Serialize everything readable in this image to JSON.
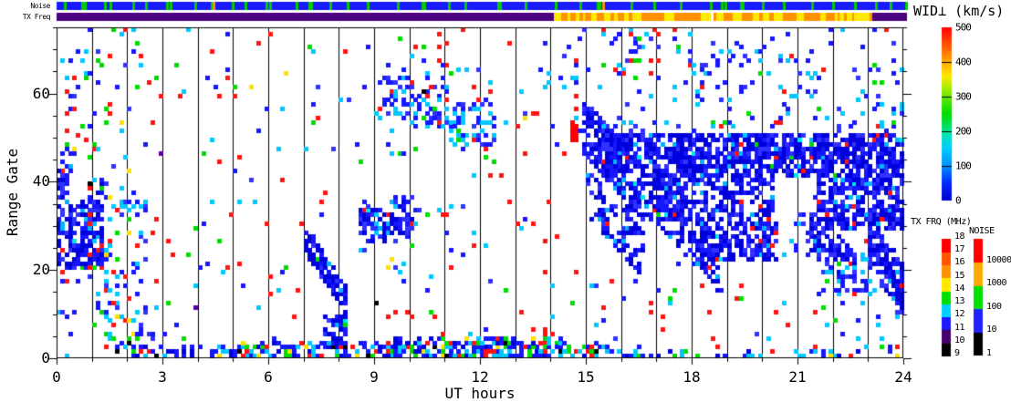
{
  "strips": {
    "noise": {
      "label": "Noise",
      "base_color": "#1a1aff",
      "tick_color": "#00cc00",
      "tick_positions_ut": [
        0.2,
        0.7,
        0.78,
        1.35,
        1.5,
        2.15,
        2.5,
        3.1,
        3.2,
        3.9,
        4.35,
        4.95,
        5.3,
        5.9,
        6.0,
        6.75,
        7.1,
        7.15,
        7.7,
        8.2,
        8.75,
        9.6,
        10.3,
        10.35,
        11.05,
        11.5,
        12.45,
        12.5,
        13.2,
        14.05,
        14.75,
        15.25,
        15.3,
        16.2,
        16.85,
        17.6,
        18.45,
        18.75,
        18.85,
        19.3,
        19.35,
        19.9,
        20.5,
        21.3,
        21.9,
        22.5,
        23.1,
        23.5,
        23.95
      ],
      "orange_tick_color": "#ff9100",
      "orange_tick_positions_ut": [
        4.4,
        15.4
      ]
    },
    "tx_freq": {
      "label": "TX Freq",
      "base_color": "#4b0082",
      "mixed_interval_ut": [
        14.03,
        22.95
      ],
      "mixed_colors": [
        "#ff9100",
        "#ffe800"
      ]
    }
  },
  "colorbars": {
    "wid": {
      "title": "WID⊥ (km/s)",
      "min": 0,
      "max": 500,
      "ticks": [
        0,
        100,
        200,
        300,
        400,
        500
      ],
      "gradient_bottom_to_top": [
        [
          "#0000d0",
          0.0
        ],
        [
          "#0028ff",
          0.1
        ],
        [
          "#0090ff",
          0.2
        ],
        [
          "#00ccff",
          0.3
        ],
        [
          "#00e6b4",
          0.38
        ],
        [
          "#00e050",
          0.44
        ],
        [
          "#00dc00",
          0.5
        ],
        [
          "#50e600",
          0.58
        ],
        [
          "#b4ee00",
          0.66
        ],
        [
          "#ffe800",
          0.72
        ],
        [
          "#ffaa00",
          0.8
        ],
        [
          "#ff6400",
          0.88
        ],
        [
          "#ff2800",
          0.95
        ],
        [
          "#ff0000",
          1.0
        ]
      ]
    },
    "tx_frq": {
      "title": "TX FRQ (MHz)",
      "min": 9,
      "max": 18,
      "ticks": [
        9,
        10,
        11,
        12,
        13,
        14,
        15,
        16,
        17,
        18
      ],
      "colors_bottom_to_top": [
        "#000000",
        "#46006e",
        "#1a1aff",
        "#00cfff",
        "#00e000",
        "#ffe800",
        "#ff9100",
        "#ff5500",
        "#ff0000"
      ]
    },
    "noise": {
      "title": "NOISE",
      "labels_bottom_to_top": [
        "1",
        "10",
        "100",
        "1000",
        "10000"
      ],
      "colors_bottom_to_top": [
        "#000000",
        "#2222ff",
        "#00e000",
        "#ffaa00",
        "#ff0000"
      ]
    }
  },
  "chart_data": {
    "type": "heatmap",
    "xlabel": "UT hours",
    "ylabel": "Range Gate",
    "x_range": [
      0,
      24
    ],
    "y_range": [
      0,
      75
    ],
    "x_major_ticks": [
      0,
      3,
      6,
      9,
      12,
      15,
      18,
      21,
      24
    ],
    "x_minor_step": 1,
    "y_major_ticks": [
      0,
      20,
      40,
      60
    ],
    "y_minor_step": 5,
    "grid": "vertical black line each UT hour",
    "legend_position": "right",
    "value_unit": "km/s (WID perpendicular, 0=blue to 500=red)",
    "time_bins_per_hour": 9,
    "seed": 1234,
    "palettes": {
      "blue_dense": [
        [
          "#0000dc",
          45
        ],
        [
          "#1616ff",
          30
        ],
        [
          "#3232ff",
          15
        ],
        [
          "#00b4ff",
          6
        ],
        [
          "#ff1414",
          2
        ],
        [
          "#00dc00",
          1
        ],
        [
          "#00e6e6",
          1
        ]
      ],
      "blue_cyan": [
        [
          "#1616ff",
          45
        ],
        [
          "#00c8ff",
          30
        ],
        [
          "#3232ff",
          15
        ],
        [
          "#ff1414",
          5
        ],
        [
          "#00dc00",
          5
        ]
      ],
      "mixed_sparse": [
        [
          "#ff1414",
          42
        ],
        [
          "#1616ff",
          18
        ],
        [
          "#00c8ff",
          16
        ],
        [
          "#00dc00",
          14
        ],
        [
          "#3232ff",
          5
        ],
        [
          "#ffe100",
          2
        ],
        [
          "#ff9100",
          1
        ],
        [
          "#000000",
          1
        ],
        [
          "#5a00a0",
          1
        ]
      ],
      "mixed_medium": [
        [
          "#1616ff",
          30
        ],
        [
          "#00c8ff",
          25
        ],
        [
          "#00dc00",
          15
        ],
        [
          "#ff1414",
          15
        ],
        [
          "#3232ff",
          10
        ],
        [
          "#ffe100",
          3
        ],
        [
          "#000000",
          2
        ]
      ],
      "red_dom": [
        [
          "#ff1414",
          70
        ],
        [
          "#1616ff",
          10
        ],
        [
          "#00c8ff",
          10
        ],
        [
          "#00dc00",
          8
        ],
        [
          "#ffe100",
          2
        ]
      ],
      "red_solid": [
        [
          "#ff0000",
          90
        ],
        [
          "#e60000",
          10
        ]
      ],
      "bottom_band": [
        [
          "#1616ff",
          35
        ],
        [
          "#00c8ff",
          25
        ],
        [
          "#0000dc",
          15
        ],
        [
          "#00dc00",
          8
        ],
        [
          "#ff1414",
          10
        ],
        [
          "#ffe100",
          3
        ],
        [
          "#000000",
          4
        ]
      ]
    },
    "features": [
      {
        "shape": "rect",
        "t": [
          0,
          24
        ],
        "g": [
          0,
          75
        ],
        "d": 0.007,
        "p": "mixed_sparse"
      },
      {
        "shape": "rect",
        "t": [
          2.6,
          12.3
        ],
        "g": [
          3,
          75
        ],
        "d": 0.018,
        "p": "mixed_sparse"
      },
      {
        "shape": "rect",
        "t": [
          12.3,
          14.8
        ],
        "g": [
          4,
          62
        ],
        "d": 0.035,
        "p": "red_dom"
      },
      {
        "shape": "rect",
        "t": [
          13.4,
          14.8
        ],
        "g": [
          55,
          72
        ],
        "d": 0.05,
        "p": "blue_cyan"
      },
      {
        "shape": "rect",
        "t": [
          0,
          2.6
        ],
        "g": [
          3,
          75
        ],
        "d": 0.07,
        "p": "mixed_medium"
      },
      {
        "shape": "rect",
        "t": [
          0,
          0.38
        ],
        "g": [
          17,
          43
        ],
        "d": 0.6,
        "p": "blue_dense"
      },
      {
        "shape": "rect",
        "t": [
          0.05,
          0.45
        ],
        "g": [
          38,
          48
        ],
        "d": 0.35,
        "p": "blue_dense"
      },
      {
        "shape": "rect",
        "t": [
          0.3,
          1.3
        ],
        "g": [
          20,
          36
        ],
        "d": 0.66,
        "p": "blue_dense"
      },
      {
        "shape": "diag",
        "t": [
          0.85,
          1.45
        ],
        "gc": [
          28,
          43
        ],
        "hw": 4,
        "d": 0.5,
        "p": "blue_dense"
      },
      {
        "shape": "rect",
        "t": [
          1.3,
          2.6
        ],
        "g": [
          2,
          20
        ],
        "d": 0.2,
        "p": "mixed_medium"
      },
      {
        "shape": "rect",
        "t": [
          0.9,
          2.6
        ],
        "g": [
          20,
          40
        ],
        "d": 0.12,
        "p": "mixed_medium"
      },
      {
        "shape": "rect",
        "t": [
          1.6,
          16.6
        ],
        "g": [
          0,
          2.3
        ],
        "d": 0.45,
        "p": "bottom_band"
      },
      {
        "shape": "rect",
        "t": [
          9.4,
          14.6
        ],
        "g": [
          0,
          4.2
        ],
        "d": 0.5,
        "p": "bottom_band"
      },
      {
        "shape": "rect",
        "t": [
          5.2,
          9.4
        ],
        "g": [
          0,
          3.2
        ],
        "d": 0.3,
        "p": "bottom_band"
      },
      {
        "shape": "rect",
        "t": [
          16.6,
          24
        ],
        "g": [
          0,
          1.6
        ],
        "d": 0.2,
        "p": "bottom_band"
      },
      {
        "shape": "diag",
        "t": [
          7.0,
          8.2
        ],
        "gc": [
          27,
          12
        ],
        "hw": 2.8,
        "d": 0.85,
        "p": "blue_dense"
      },
      {
        "shape": "rect",
        "t": [
          7.55,
          8.25
        ],
        "g": [
          2,
          9.5
        ],
        "d": 0.7,
        "p": "blue_dense"
      },
      {
        "shape": "rect",
        "t": [
          8.55,
          9.3
        ],
        "g": [
          26,
          34
        ],
        "d": 0.6,
        "p": "blue_dense"
      },
      {
        "shape": "rect",
        "t": [
          9.3,
          10.15
        ],
        "g": [
          28,
          36
        ],
        "d": 0.55,
        "p": "blue_dense"
      },
      {
        "shape": "rect",
        "t": [
          8.4,
          10.3
        ],
        "g": [
          24,
          38
        ],
        "d": 0.1,
        "p": "blue_cyan"
      },
      {
        "shape": "rect",
        "t": [
          9.2,
          10.05
        ],
        "g": [
          55,
          64
        ],
        "d": 0.38,
        "p": "blue_cyan"
      },
      {
        "shape": "rect",
        "t": [
          10.0,
          11.15
        ],
        "g": [
          52,
          62
        ],
        "d": 0.42,
        "p": "blue_cyan"
      },
      {
        "shape": "rect",
        "t": [
          11.1,
          12.45
        ],
        "g": [
          48,
          58
        ],
        "d": 0.38,
        "p": "blue_cyan"
      },
      {
        "shape": "rect",
        "t": [
          9.0,
          12.6
        ],
        "g": [
          46,
          67
        ],
        "d": 0.06,
        "p": "mixed_medium"
      },
      {
        "shape": "rect",
        "t": [
          14.55,
          14.75
        ],
        "g": [
          48,
          55
        ],
        "d": 0.8,
        "p": "red_solid"
      },
      {
        "shape": "diag",
        "t": [
          14.85,
          16.1
        ],
        "gc": [
          52,
          42
        ],
        "hw": 6,
        "d": 0.8,
        "p": "blue_dense"
      },
      {
        "shape": "diag",
        "t": [
          14.95,
          16.7
        ],
        "gc": [
          38,
          22
        ],
        "hw": 5,
        "d": 0.5,
        "p": "blue_dense"
      },
      {
        "shape": "rect",
        "t": [
          15.5,
          24
        ],
        "g": [
          41,
          51
        ],
        "d": 0.72,
        "p": "blue_dense"
      },
      {
        "shape": "rect",
        "t": [
          16.1,
          20.3
        ],
        "g": [
          31,
          41
        ],
        "d": 0.58,
        "p": "blue_dense"
      },
      {
        "shape": "diag",
        "t": [
          17.0,
          18.8
        ],
        "gc": [
          36,
          21
        ],
        "hw": 6,
        "d": 0.55,
        "p": "blue_dense"
      },
      {
        "shape": "rect",
        "t": [
          18.2,
          20.4
        ],
        "g": [
          22,
          31
        ],
        "d": 0.5,
        "p": "blue_dense"
      },
      {
        "shape": "rect",
        "t": [
          20.4,
          21.6
        ],
        "g": [
          23,
          33
        ],
        "d": 0.12,
        "p": "blue_cyan"
      },
      {
        "shape": "rect",
        "t": [
          21.6,
          24
        ],
        "g": [
          29,
          41
        ],
        "d": 0.6,
        "p": "blue_dense"
      },
      {
        "shape": "diag",
        "t": [
          21.3,
          22.7
        ],
        "gc": [
          29,
          18
        ],
        "hw": 4.5,
        "d": 0.45,
        "p": "blue_dense"
      },
      {
        "shape": "diag",
        "t": [
          23.05,
          24
        ],
        "gc": [
          26,
          15
        ],
        "hw": 5.5,
        "d": 0.75,
        "p": "blue_dense"
      },
      {
        "shape": "rect",
        "t": [
          21.6,
          23.2
        ],
        "g": [
          14,
          26
        ],
        "d": 0.22,
        "p": "blue_cyan"
      },
      {
        "shape": "rect",
        "t": [
          14.8,
          24
        ],
        "g": [
          50,
          54
        ],
        "d": 0.1,
        "p": "blue_cyan"
      },
      {
        "shape": "rect",
        "t": [
          14.6,
          24
        ],
        "g": [
          52,
          75
        ],
        "d": 0.05,
        "p": "blue_cyan"
      },
      {
        "shape": "rect",
        "t": [
          15.4,
          17.1
        ],
        "g": [
          63,
          75
        ],
        "d": 0.1,
        "p": "mixed_medium"
      },
      {
        "shape": "rect",
        "t": [
          17.8,
          19.6
        ],
        "g": [
          58,
          72
        ],
        "d": 0.07,
        "p": "blue_cyan"
      },
      {
        "shape": "rect",
        "t": [
          20.4,
          21.8
        ],
        "g": [
          58,
          70
        ],
        "d": 0.1,
        "p": "blue_cyan"
      },
      {
        "shape": "rect",
        "t": [
          22.5,
          24
        ],
        "g": [
          55,
          68
        ],
        "d": 0.08,
        "p": "blue_cyan"
      },
      {
        "shape": "rect",
        "t": [
          15.0,
          21.5
        ],
        "g": [
          3,
          20
        ],
        "d": 0.03,
        "p": "mixed_sparse"
      },
      {
        "shape": "rect",
        "t": [
          21.5,
          24
        ],
        "g": [
          2,
          14
        ],
        "d": 0.05,
        "p": "mixed_medium"
      }
    ]
  }
}
